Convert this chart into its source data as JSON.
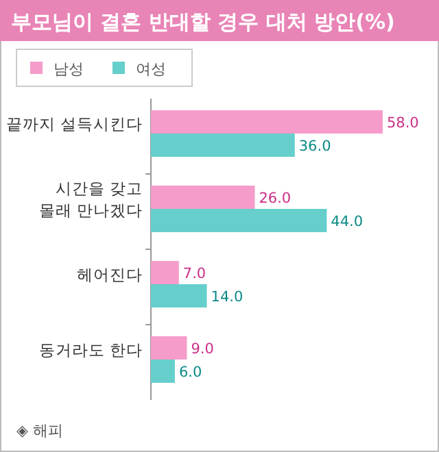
{
  "chart_data": {
    "type": "bar",
    "orientation": "horizontal",
    "title": "부모님이 결혼 반대할 경우 대처 방안(%)",
    "categories": [
      "끝까지 설득시킨다",
      "시간을 갖고\n몰래 만나겠다",
      "헤어진다",
      "동거라도 한다"
    ],
    "series": [
      {
        "name": "남성",
        "color": "#f59ccb",
        "values": [
          58,
          26,
          7,
          9
        ],
        "value_labels": [
          "58.0",
          "26.0",
          "7.0",
          "9.0"
        ]
      },
      {
        "name": "여성",
        "color": "#66cfcc",
        "values": [
          36,
          44,
          14,
          6
        ],
        "value_labels": [
          "36.0",
          "44.0",
          "14.0",
          "6.0"
        ]
      }
    ],
    "legend": "top left",
    "annotations": [
      "◈ 해피"
    ]
  }
}
